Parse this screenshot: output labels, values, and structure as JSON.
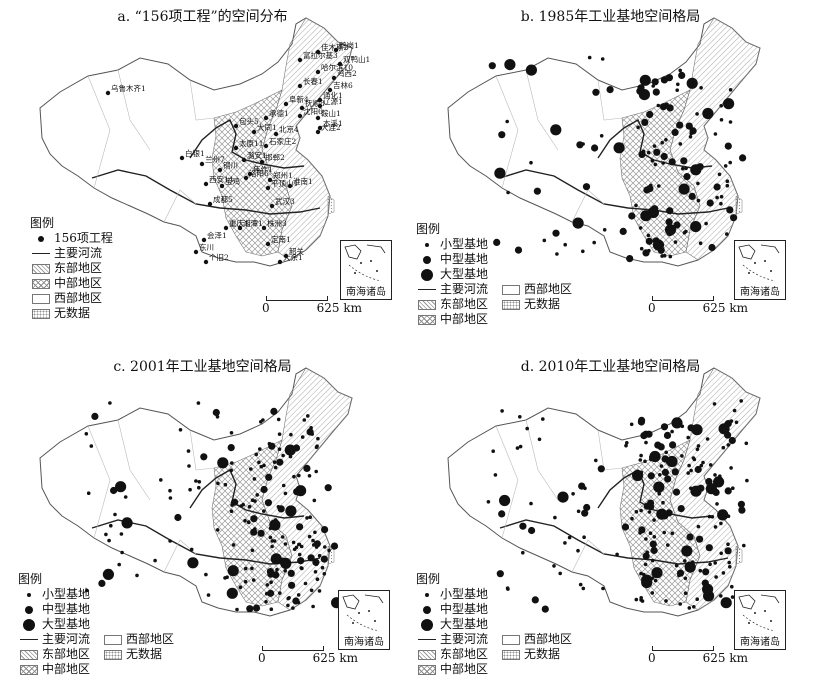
{
  "panels": [
    {
      "id": "a",
      "title": "a. “156项工程”的空间分布"
    },
    {
      "id": "b",
      "title": "b. 1985年工业基地空间格局"
    },
    {
      "id": "c",
      "title": "c. 2001年工业基地空间格局"
    },
    {
      "id": "d",
      "title": "d. 2010年工业基地空间格局"
    }
  ],
  "legend": {
    "title": "图例",
    "project_156": "156项工程",
    "small_base": "小型基地",
    "medium_base": "中型基地",
    "large_base": "大型基地",
    "river": "主要河流",
    "east": "东部地区",
    "central": "中部地区",
    "west": "西部地区",
    "no_data": "无数据"
  },
  "scale": {
    "zero": "0",
    "value": "625 km"
  },
  "inset_label": "南海诸岛",
  "cities_156": [
    "乌鲁木齐1",
    "佳木斯2",
    "鹤岗1",
    "富拉尔基3",
    "双鸭山1",
    "哈尔滨10",
    "鸡西2",
    "长春1",
    "吉林6",
    "阜新4",
    "抚顺8",
    "辽源1",
    "沈阳6",
    "鞍山1",
    "本溪1",
    "承德1",
    "大连2",
    "通化1",
    "包头5",
    "大同1",
    "北京4",
    "太原11",
    "石家庄2",
    "白银1",
    "兰州7",
    "潞安1",
    "邯郸2",
    "焦作1",
    "铜川",
    "洛阳6",
    "郑州1",
    "西安14",
    "宝鸡",
    "淮南1",
    "平顶山1",
    "成都5",
    "武汉3",
    "重庆1",
    "湘潭1",
    "株洲3",
    "会泽1",
    "东川",
    "定南1",
    "个旧2",
    "韶关",
    "大余1"
  ],
  "colors": {
    "line": "#222222",
    "fill": "#ffffff",
    "dots": "#111111",
    "hatch": "#999999"
  }
}
